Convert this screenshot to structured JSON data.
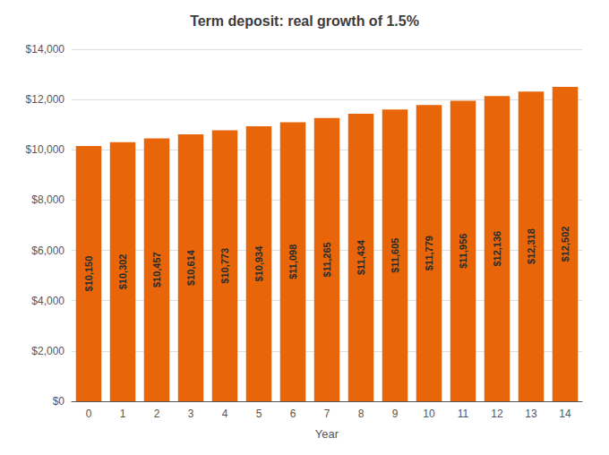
{
  "chart_data": {
    "type": "bar",
    "title": "Term deposit: real growth of 1.5%",
    "xlabel": "Year",
    "categories": [
      0,
      1,
      2,
      3,
      4,
      5,
      6,
      7,
      8,
      9,
      10,
      11,
      12,
      13,
      14
    ],
    "values": [
      10150,
      10302,
      10457,
      10614,
      10773,
      10934,
      11098,
      11265,
      11434,
      11605,
      11779,
      11956,
      12136,
      12318,
      12502
    ],
    "value_labels": [
      "$10,150",
      "$10,302",
      "$10,457",
      "$10,614",
      "$10,773",
      "$10,934",
      "$11,098",
      "$11,265",
      "$11,434",
      "$11,605",
      "$11,779",
      "$11,956",
      "$12,136",
      "$12,318",
      "$12,502"
    ],
    "color": "#E8650A",
    "ylim": [
      0,
      14000
    ],
    "yticks": [
      {
        "value": 0,
        "label": "$0"
      },
      {
        "value": 2000,
        "label": "$2,000"
      },
      {
        "value": 4000,
        "label": "$4,000"
      },
      {
        "value": 6000,
        "label": "$6,000"
      },
      {
        "value": 8000,
        "label": "$8,000"
      },
      {
        "value": 10000,
        "label": "$10,000"
      },
      {
        "value": 12000,
        "label": "$12,000"
      },
      {
        "value": 14000,
        "label": "$14,000"
      }
    ],
    "grid": true,
    "data_labels": true
  }
}
